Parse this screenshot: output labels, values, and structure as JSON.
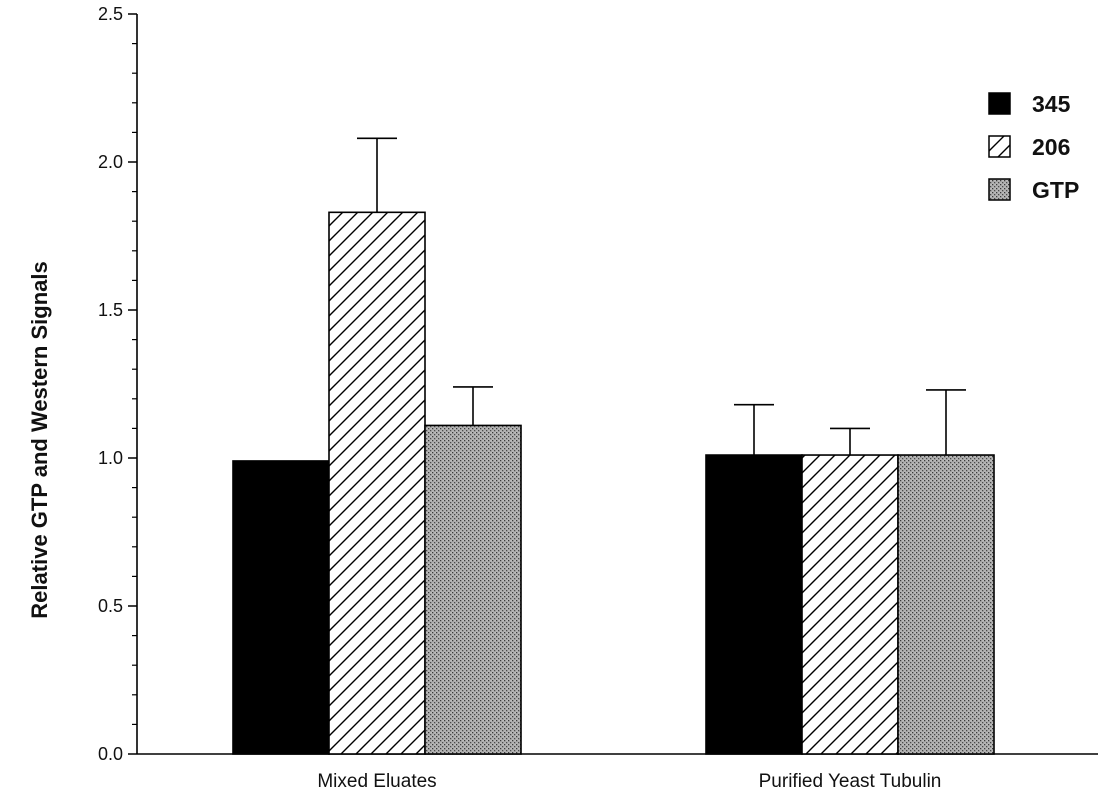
{
  "chart_data": {
    "type": "bar",
    "title": "",
    "xlabel": "",
    "ylabel": "Relative GTP and Western Signals",
    "ylim": [
      0,
      2.5
    ],
    "yticks": [
      "0.0",
      "0.5",
      "1.0",
      "1.5",
      "2.0",
      "2.5"
    ],
    "categories": [
      "Mixed Eluates",
      "Purified Yeast Tubulin"
    ],
    "series": [
      {
        "name": "345",
        "values": [
          0.99,
          1.01
        ],
        "errors": [
          0.0,
          0.17
        ],
        "color": "#000000",
        "pattern": "solid"
      },
      {
        "name": "206",
        "values": [
          1.83,
          1.01
        ],
        "errors": [
          0.25,
          0.09
        ],
        "color": "#000000",
        "pattern": "hatch"
      },
      {
        "name": "GTP",
        "values": [
          1.11,
          1.01
        ],
        "errors": [
          0.13,
          0.22
        ],
        "color": "#9a9a9a",
        "pattern": "stipple"
      }
    ],
    "grid": false,
    "legend_position": "top-right"
  }
}
